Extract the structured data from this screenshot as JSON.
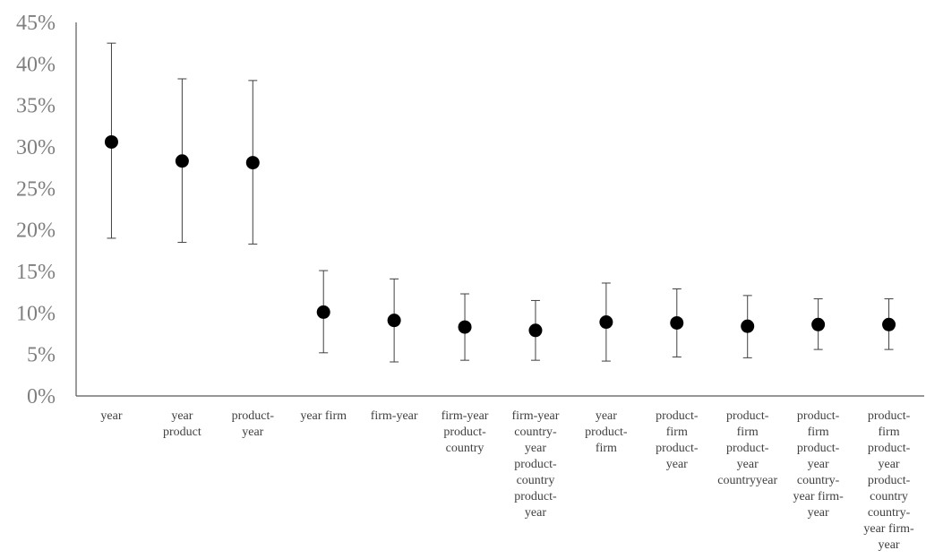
{
  "chart_data": {
    "type": "scatter",
    "title": "",
    "xlabel": "",
    "ylabel": "",
    "ylim": [
      0,
      0.45
    ],
    "y_ticks": [
      "0%",
      "5%",
      "10%",
      "15%",
      "20%",
      "25%",
      "30%",
      "35%",
      "40%",
      "45%"
    ],
    "grid": false,
    "legend": "none",
    "categories": [
      [
        "year"
      ],
      [
        "year",
        "product"
      ],
      [
        "product-",
        "year"
      ],
      [
        "year firm"
      ],
      [
        "firm-year"
      ],
      [
        "firm-year",
        "product-",
        "country"
      ],
      [
        "firm-year",
        "country-",
        "year",
        "product-",
        "country",
        "product-",
        "year"
      ],
      [
        "year",
        "product-",
        "firm"
      ],
      [
        "product-",
        "firm",
        "product-",
        "year"
      ],
      [
        "product-",
        "firm",
        "product-",
        "year",
        "countryyear"
      ],
      [
        "product-",
        "firm",
        "product-",
        "year",
        "country-",
        "year firm-",
        "year"
      ],
      [
        "product-",
        "firm",
        "product-",
        "year",
        "product-",
        "country",
        "country-",
        "year firm-",
        "year"
      ]
    ],
    "series": [
      {
        "values": [
          0.306,
          0.283,
          0.281,
          0.101,
          0.091,
          0.083,
          0.079,
          0.089,
          0.088,
          0.084,
          0.086,
          0.086
        ],
        "error_low": [
          0.19,
          0.185,
          0.183,
          0.052,
          0.041,
          0.043,
          0.043,
          0.042,
          0.047,
          0.046,
          0.056,
          0.056
        ],
        "error_high": [
          0.425,
          0.382,
          0.38,
          0.151,
          0.141,
          0.123,
          0.115,
          0.136,
          0.129,
          0.121,
          0.117,
          0.117
        ]
      }
    ],
    "colors": {
      "marker": "#000000",
      "error_bar": "#404040",
      "axis": "#595959",
      "y_tick_text": "#7f7f7f",
      "x_tick_text": "#404040"
    }
  }
}
